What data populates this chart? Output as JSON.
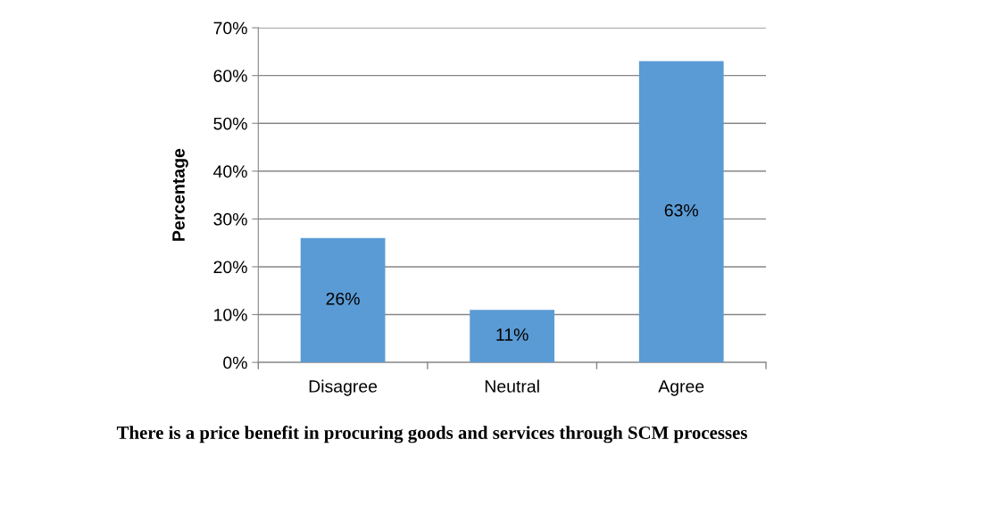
{
  "chart_data": {
    "type": "bar",
    "title": "There is a price benefit in procuring goods and services through SCM processes",
    "ylabel": "Percentage",
    "categories": [
      "Disagree",
      "Neutral",
      "Agree"
    ],
    "values": [
      26,
      11,
      63
    ],
    "value_labels": [
      "26%",
      "11%",
      "63%"
    ],
    "color": "#5b9bd5",
    "ylim": [
      0,
      70
    ],
    "yticks": [
      {
        "value": 0,
        "label": "0%"
      },
      {
        "value": 10,
        "label": "10%"
      },
      {
        "value": 20,
        "label": "20%"
      },
      {
        "value": 30,
        "label": "30%"
      },
      {
        "value": 40,
        "label": "40%"
      },
      {
        "value": 50,
        "label": "50%"
      },
      {
        "value": 60,
        "label": "60%"
      },
      {
        "value": 70,
        "label": "70%"
      }
    ],
    "grid": "y"
  }
}
